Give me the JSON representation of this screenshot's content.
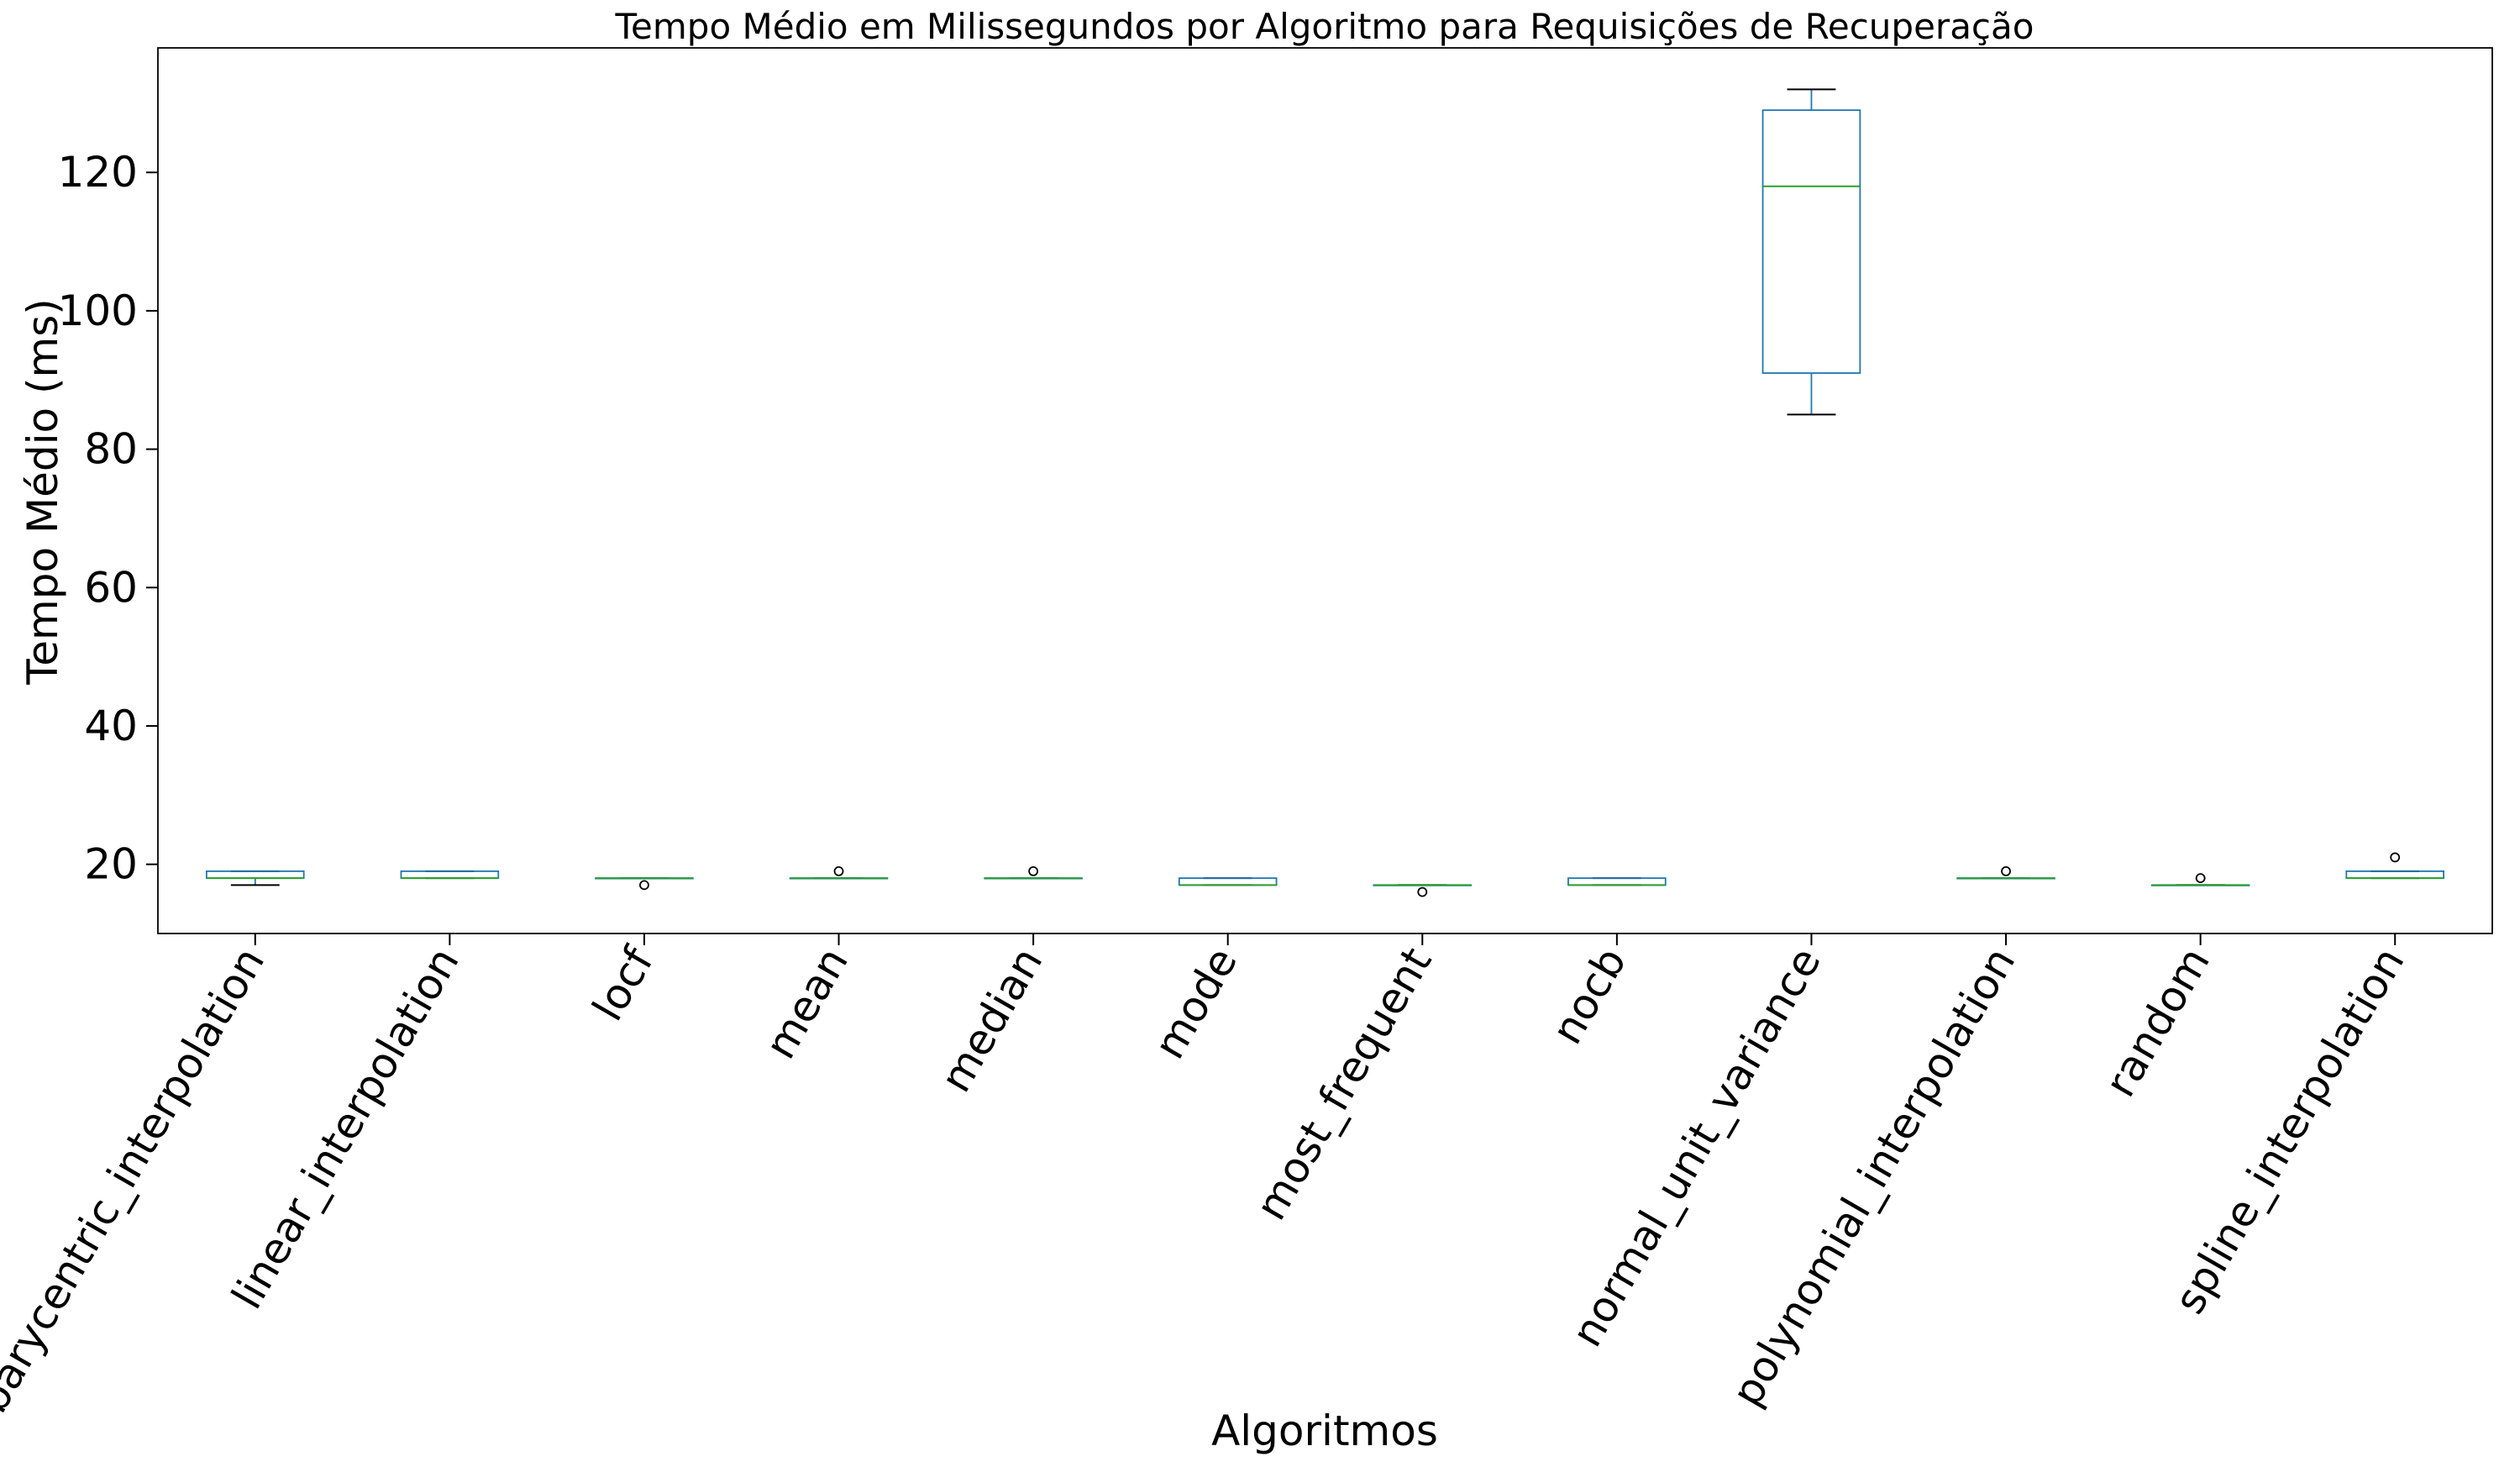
{
  "chart_data": {
    "type": "box",
    "title": "Tempo Médio em Milissegundos por Algoritmo para Requisições de Recuperação",
    "xlabel": "Algoritmos",
    "ylabel": "Tempo Médio (ms)",
    "ylim": [
      10,
      138
    ],
    "yticks": [
      20,
      40,
      60,
      80,
      100,
      120
    ],
    "grid": false,
    "categories": [
      "barycentric_interpolation",
      "linear_interpolation",
      "locf",
      "mean",
      "median",
      "mode",
      "most_frequent",
      "nocb",
      "normal_unit_variance",
      "polynomial_interpolation",
      "random",
      "spline_interpolation"
    ],
    "boxes": [
      {
        "whisker_low": 17,
        "q1": 18,
        "median": 18,
        "q3": 19,
        "whisker_high": 19,
        "outliers": []
      },
      {
        "whisker_low": 18,
        "q1": 18,
        "median": 18,
        "q3": 19,
        "whisker_high": 19,
        "outliers": []
      },
      {
        "whisker_low": 18,
        "q1": 18,
        "median": 18,
        "q3": 18,
        "whisker_high": 18,
        "outliers": [
          17
        ]
      },
      {
        "whisker_low": 18,
        "q1": 18,
        "median": 18,
        "q3": 18,
        "whisker_high": 18,
        "outliers": [
          19
        ]
      },
      {
        "whisker_low": 18,
        "q1": 18,
        "median": 18,
        "q3": 18,
        "whisker_high": 18,
        "outliers": [
          19
        ]
      },
      {
        "whisker_low": 17,
        "q1": 17,
        "median": 17,
        "q3": 18,
        "whisker_high": 18,
        "outliers": []
      },
      {
        "whisker_low": 17,
        "q1": 17,
        "median": 17,
        "q3": 17,
        "whisker_high": 17,
        "outliers": [
          16
        ]
      },
      {
        "whisker_low": 17,
        "q1": 17,
        "median": 17,
        "q3": 18,
        "whisker_high": 18,
        "outliers": []
      },
      {
        "whisker_low": 85,
        "q1": 91,
        "median": 118,
        "q3": 129,
        "whisker_high": 132,
        "outliers": []
      },
      {
        "whisker_low": 18,
        "q1": 18,
        "median": 18,
        "q3": 18,
        "whisker_high": 18,
        "outliers": [
          19
        ]
      },
      {
        "whisker_low": 17,
        "q1": 17,
        "median": 17,
        "q3": 17,
        "whisker_high": 17,
        "outliers": [
          18
        ]
      },
      {
        "whisker_low": 18,
        "q1": 18,
        "median": 18,
        "q3": 19,
        "whisker_high": 19,
        "outliers": [
          21
        ]
      }
    ],
    "colors": {
      "box": "#1f77b4",
      "median": "#2ca02c",
      "whisker": "#000000",
      "axes": "#000000"
    }
  }
}
